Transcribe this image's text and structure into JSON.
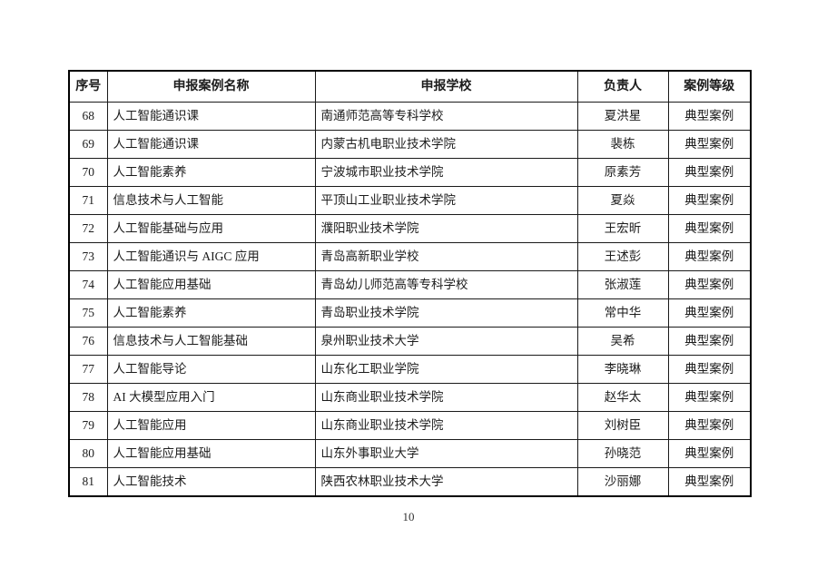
{
  "page": {
    "number": "10"
  },
  "table": {
    "headers": [
      "序号",
      "申报案例名称",
      "申报学校",
      "负责人",
      "案例等级"
    ],
    "rows": [
      {
        "no": "68",
        "case_name": "人工智能通识课",
        "school": "南通师范高等专科学校",
        "leader": "夏洪星",
        "level": "典型案例"
      },
      {
        "no": "69",
        "case_name": "人工智能通识课",
        "school": "内蒙古机电职业技术学院",
        "leader": "裴栋",
        "level": "典型案例"
      },
      {
        "no": "70",
        "case_name": "人工智能素养",
        "school": "宁波城市职业技术学院",
        "leader": "原素芳",
        "level": "典型案例"
      },
      {
        "no": "71",
        "case_name": "信息技术与人工智能",
        "school": "平顶山工业职业技术学院",
        "leader": "夏焱",
        "level": "典型案例"
      },
      {
        "no": "72",
        "case_name": "人工智能基础与应用",
        "school": "濮阳职业技术学院",
        "leader": "王宏昕",
        "level": "典型案例"
      },
      {
        "no": "73",
        "case_name": "人工智能通识与 AIGC 应用",
        "school": "青岛高新职业学校",
        "leader": "王述彭",
        "level": "典型案例"
      },
      {
        "no": "74",
        "case_name": "人工智能应用基础",
        "school": "青岛幼儿师范高等专科学校",
        "leader": "张淑莲",
        "level": "典型案例"
      },
      {
        "no": "75",
        "case_name": "人工智能素养",
        "school": "青岛职业技术学院",
        "leader": "常中华",
        "level": "典型案例"
      },
      {
        "no": "76",
        "case_name": "信息技术与人工智能基础",
        "school": "泉州职业技术大学",
        "leader": "吴希",
        "level": "典型案例"
      },
      {
        "no": "77",
        "case_name": "人工智能导论",
        "school": "山东化工职业学院",
        "leader": "李晓琳",
        "level": "典型案例"
      },
      {
        "no": "78",
        "case_name": "AI 大模型应用入门",
        "school": "山东商业职业技术学院",
        "leader": "赵华太",
        "level": "典型案例"
      },
      {
        "no": "79",
        "case_name": "人工智能应用",
        "school": "山东商业职业技术学院",
        "leader": "刘树臣",
        "level": "典型案例"
      },
      {
        "no": "80",
        "case_name": "人工智能应用基础",
        "school": "山东外事职业大学",
        "leader": "孙晓范",
        "level": "典型案例"
      },
      {
        "no": "81",
        "case_name": "人工智能技术",
        "school": "陕西农林职业技术大学",
        "leader": "沙丽娜",
        "level": "典型案例"
      }
    ]
  }
}
